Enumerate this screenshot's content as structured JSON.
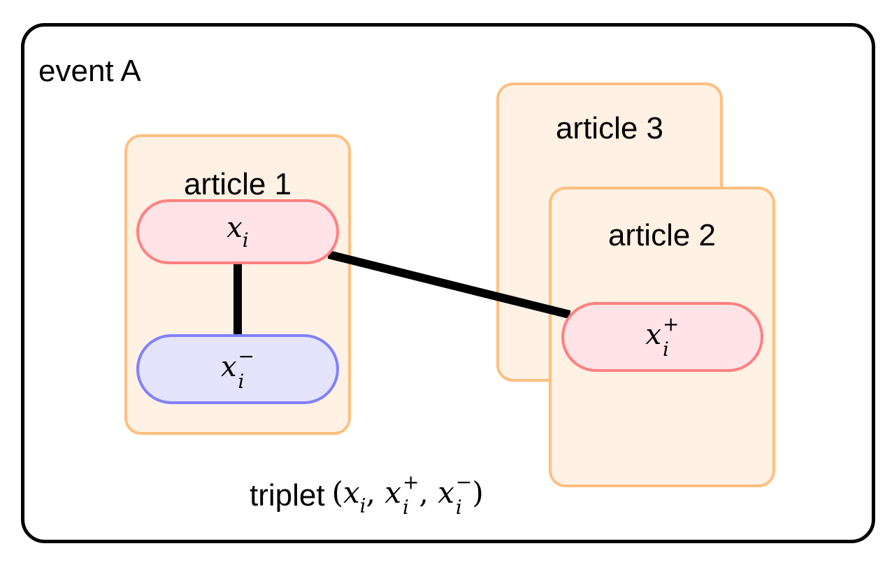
{
  "event": {
    "label": "event A"
  },
  "articles": {
    "article1": {
      "title": "article 1"
    },
    "article2": {
      "title": "article 2"
    },
    "article3": {
      "title": "article 3"
    }
  },
  "nodes": {
    "anchor": {
      "base": "x",
      "sub": "i",
      "sup": ""
    },
    "positive": {
      "base": "x",
      "sub": "i",
      "sup": "+"
    },
    "negative": {
      "base": "x",
      "sub": "i",
      "sup": "−"
    }
  },
  "caption": {
    "text": "triplet",
    "formula_open": "(",
    "formula_close": ")",
    "sep": ","
  },
  "colors": {
    "article_fill": "#fff1e4",
    "article_border": "#ffbf80",
    "anchor_fill": "#ffe3e6",
    "anchor_border": "#ff8080",
    "negative_fill": "#e4e4fc",
    "negative_border": "#8080ff",
    "link": "#000000"
  }
}
